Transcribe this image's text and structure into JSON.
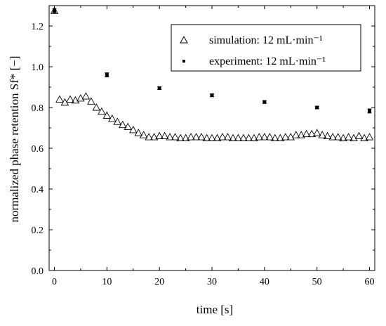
{
  "chart_data": {
    "type": "scatter",
    "xlabel": "time [s]",
    "ylabel": "normalized phase retention Sf* [−]",
    "xlim": [
      -1,
      61
    ],
    "ylim": [
      0.0,
      1.3
    ],
    "xticks": [
      0,
      10,
      20,
      30,
      40,
      50,
      60
    ],
    "yticks": [
      0.0,
      0.2,
      0.4,
      0.6,
      0.8,
      1.0,
      1.2
    ],
    "xtick_labels": [
      "0",
      "10",
      "20",
      "30",
      "40",
      "50",
      "60"
    ],
    "ytick_labels": [
      "0.0",
      "0.2",
      "0.4",
      "0.6",
      "0.8",
      "1.0",
      "1.2"
    ],
    "grid": false,
    "legend": "top-right",
    "series": [
      {
        "name": "simulation: 12 mL·min⁻¹",
        "marker": "open-triangle",
        "x": [
          0,
          1,
          2,
          3,
          4,
          5,
          6,
          7,
          8,
          9,
          10,
          11,
          12,
          13,
          14,
          15,
          16,
          17,
          18,
          19,
          20,
          21,
          22,
          23,
          24,
          25,
          26,
          27,
          28,
          29,
          30,
          31,
          32,
          33,
          34,
          35,
          36,
          37,
          38,
          39,
          40,
          41,
          42,
          43,
          44,
          45,
          46,
          47,
          48,
          49,
          50,
          51,
          52,
          53,
          54,
          55,
          56,
          57,
          58,
          59,
          60
        ],
        "y": [
          1.275,
          0.84,
          0.825,
          0.84,
          0.835,
          0.845,
          0.855,
          0.83,
          0.8,
          0.78,
          0.76,
          0.745,
          0.73,
          0.715,
          0.705,
          0.69,
          0.675,
          0.665,
          0.655,
          0.655,
          0.66,
          0.66,
          0.655,
          0.655,
          0.65,
          0.65,
          0.655,
          0.655,
          0.655,
          0.65,
          0.65,
          0.65,
          0.655,
          0.655,
          0.65,
          0.65,
          0.65,
          0.65,
          0.65,
          0.655,
          0.655,
          0.655,
          0.65,
          0.65,
          0.655,
          0.655,
          0.665,
          0.665,
          0.67,
          0.67,
          0.675,
          0.665,
          0.66,
          0.655,
          0.655,
          0.65,
          0.655,
          0.65,
          0.66,
          0.65,
          0.655
        ]
      },
      {
        "name": "experiment: 12 mL·min⁻¹",
        "marker": "filled-square",
        "x": [
          0,
          10,
          20,
          30,
          40,
          50,
          60
        ],
        "y": [
          1.275,
          0.96,
          0.895,
          0.86,
          0.827,
          0.8,
          0.783
        ],
        "error": [
          0.01,
          0.01,
          0.007,
          0.007,
          0.007,
          0.006,
          0.01
        ]
      }
    ]
  }
}
